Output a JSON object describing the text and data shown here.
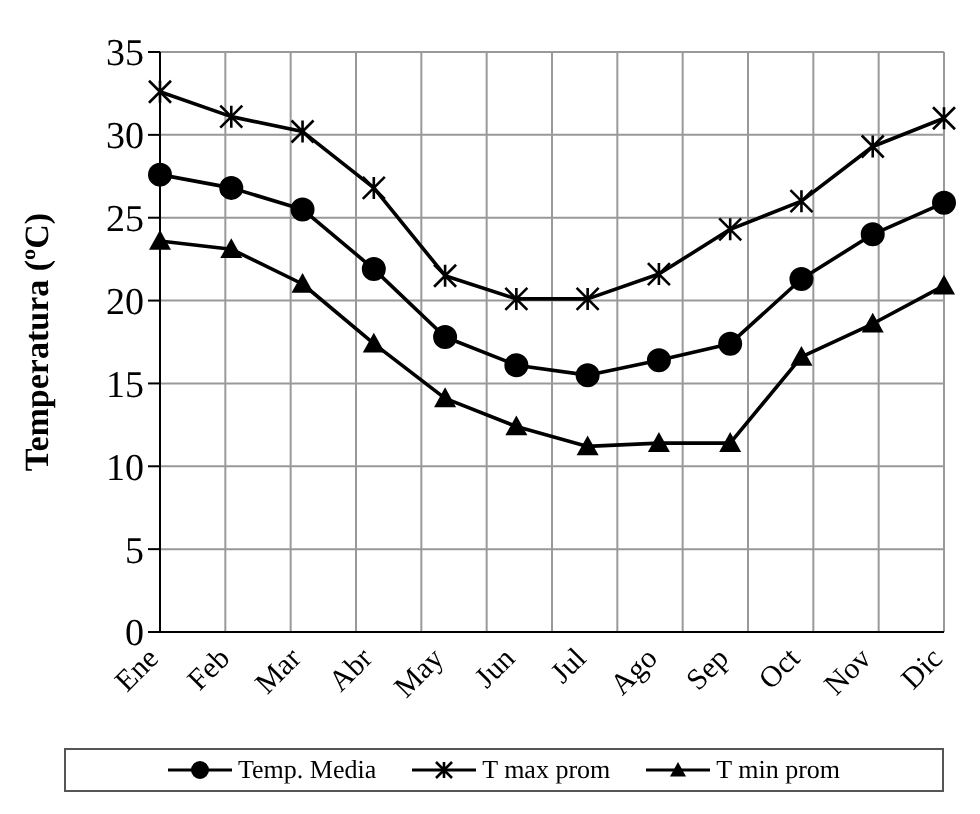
{
  "chart_data": {
    "type": "line",
    "ylabel": "Temperatura (ºC)",
    "categories": [
      "Ene",
      "Feb",
      "Mar",
      "Abr",
      "May",
      "Jun",
      "Jul",
      "Ago",
      "Sep",
      "Oct",
      "Nov",
      "Dic"
    ],
    "series": [
      {
        "name": "Temp. Media",
        "color": "#000000",
        "marker": "circle",
        "values": [
          27.6,
          26.8,
          25.5,
          21.9,
          17.8,
          16.1,
          15.5,
          16.4,
          17.4,
          21.3,
          24.0,
          25.9
        ]
      },
      {
        "name": "T max prom",
        "color": "#000000",
        "marker": "cross",
        "values": [
          32.6,
          31.1,
          30.2,
          26.8,
          21.5,
          20.1,
          20.1,
          21.6,
          24.3,
          26.0,
          29.3,
          31.0
        ]
      },
      {
        "name": "T min prom",
        "color": "#000000",
        "marker": "triangle",
        "values": [
          23.6,
          23.1,
          21.0,
          17.4,
          14.1,
          12.4,
          11.2,
          11.4,
          11.4,
          16.6,
          18.6,
          20.9
        ]
      }
    ],
    "ylim": [
      0,
      35
    ],
    "yticks": [
      0,
      5,
      10,
      15,
      20,
      25,
      30,
      35
    ],
    "grid": true,
    "legend": "bottom",
    "line_style": "solid"
  }
}
